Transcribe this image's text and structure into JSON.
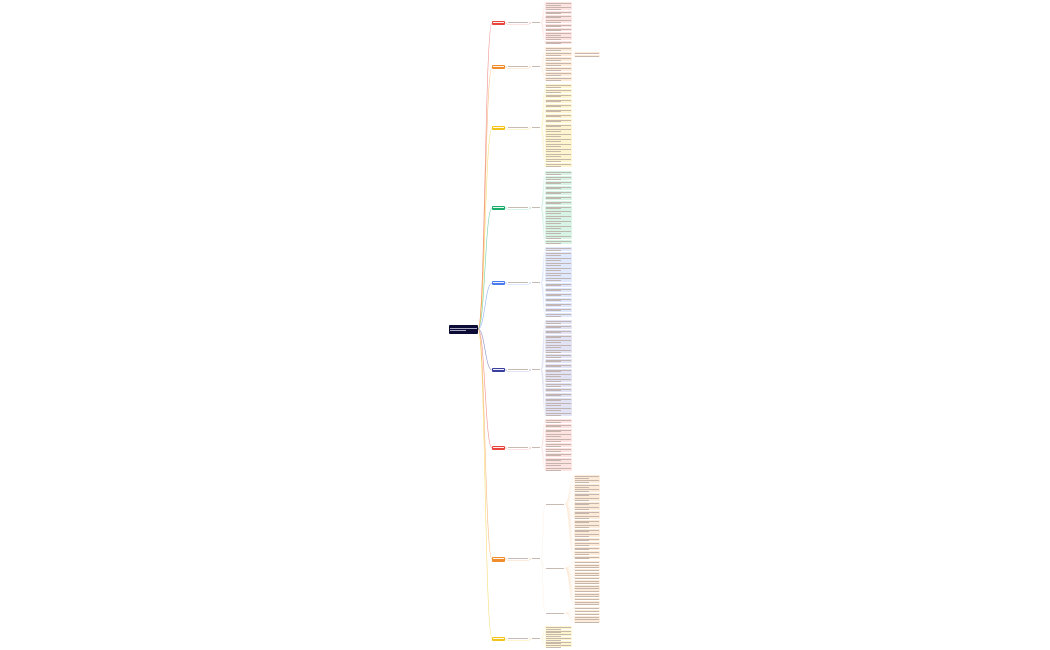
{
  "mindmap": {
    "root": {
      "color": "#0b0b35"
    },
    "branches": [
      {
        "color": "#e8453c",
        "tint": "#fde3e1",
        "leaf_count": 10
      },
      {
        "color": "#f08c2a",
        "tint": "#fdebd9",
        "leaf_count": 7,
        "third_level_count": 2
      },
      {
        "color": "#f2c41a",
        "tint": "#fdf5cf",
        "leaf_count": 17
      },
      {
        "color": "#19ad6b",
        "tint": "#d6f3e6",
        "leaf_count": 15
      },
      {
        "color": "#4a7cf0",
        "tint": "#e0e8fd",
        "leaf_count": 14
      },
      {
        "color": "#3b3f9e",
        "tint": "#e1e2f3",
        "leaf_count": 20
      },
      {
        "color": "#e8453c",
        "tint": "#fde3e1",
        "leaf_count": 11
      },
      {
        "color": "#f08c2a",
        "tint": "#fdebd9",
        "sub_groups": [
          19,
          17,
          6
        ]
      },
      {
        "color": "#f2c41a",
        "tint": "#fdf5cf",
        "leaf_count": 6
      }
    ]
  }
}
